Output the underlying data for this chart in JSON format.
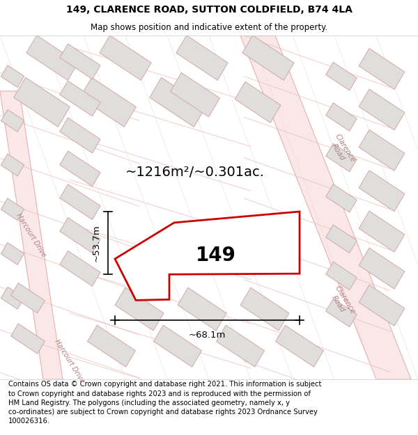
{
  "title_line1": "149, CLARENCE ROAD, SUTTON COLDFIELD, B74 4LA",
  "title_line2": "Map shows position and indicative extent of the property.",
  "footer_lines": [
    "Contains OS data © Crown copyright and database right 2021. This information is subject",
    "to Crown copyright and database rights 2023 and is reproduced with the permission of",
    "HM Land Registry. The polygons (including the associated geometry, namely x, y",
    "co-ordinates) are subject to Crown copyright and database rights 2023 Ordnance Survey",
    "100026316."
  ],
  "area_label": "~1216m²/~0.301ac.",
  "property_number": "149",
  "dim_width": "~68.1m",
  "dim_height": "~53.7m",
  "map_bg": "#f7f4f0",
  "road_fill": "#fae8e8",
  "road_edge": "#e8b0b0",
  "building_fill": "#e0dedd",
  "building_edge": "#d0a8a8",
  "plot_outline_color": "#cc0000",
  "title_fontsize": 10,
  "subtitle_fontsize": 8.5,
  "footer_fontsize": 7.2,
  "area_fontsize": 14,
  "number_fontsize": 20,
  "dim_fontsize": 9.5
}
